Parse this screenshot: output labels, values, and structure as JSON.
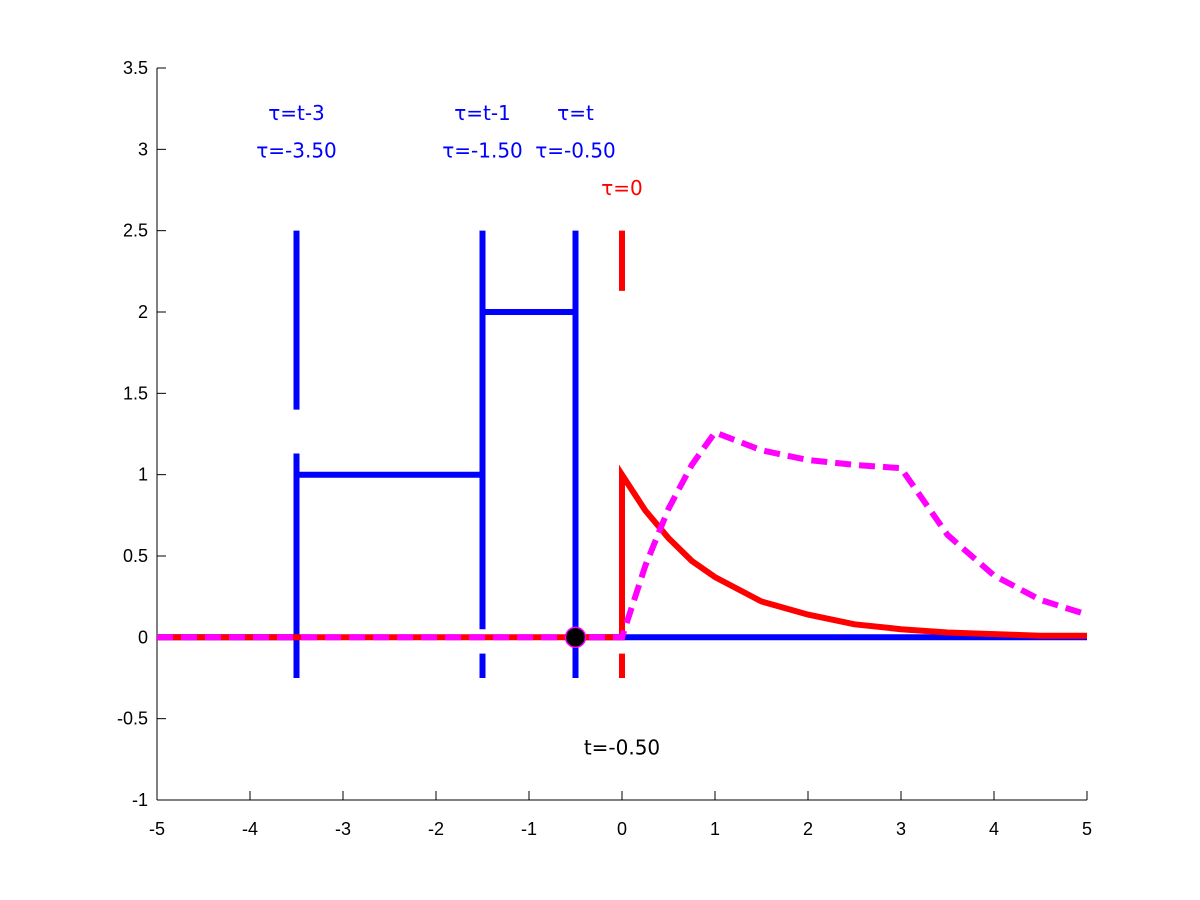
{
  "chart_data": {
    "type": "line",
    "xlim": [
      -5,
      5
    ],
    "ylim": [
      -1,
      3.5
    ],
    "x_ticks": [
      -5,
      -4,
      -3,
      -2,
      -1,
      0,
      1,
      2,
      3,
      4,
      5
    ],
    "x_tick_labels": [
      "-5",
      "-4",
      "-3",
      "-2",
      "-1",
      "0",
      "1",
      "2",
      "3",
      "4",
      "5"
    ],
    "y_ticks": [
      -1,
      -0.5,
      0,
      0.5,
      1,
      1.5,
      2,
      2.5,
      3,
      3.5
    ],
    "y_tick_labels": [
      "-1",
      "-0.5",
      "0",
      "0.5",
      "1",
      "1.5",
      "2",
      "2.5",
      "3",
      "3.5"
    ],
    "grid": false,
    "series": [
      {
        "id": "flipped-input",
        "color": "#0000ff",
        "style": "solid",
        "x": [
          -5,
          -3.5,
          -3.5,
          -1.5,
          -1.5,
          -0.5,
          -0.5,
          5
        ],
        "y": [
          0,
          0,
          1,
          1,
          2,
          2,
          0,
          0
        ]
      },
      {
        "id": "impulse-response",
        "color": "#ff0000",
        "style": "solid",
        "x": [
          -5,
          0,
          0,
          0.25,
          0.5,
          0.75,
          1,
          1.5,
          2,
          2.5,
          3,
          3.5,
          4,
          4.5,
          5
        ],
        "y": [
          0,
          0,
          1,
          0.78,
          0.61,
          0.47,
          0.37,
          0.22,
          0.14,
          0.08,
          0.05,
          0.03,
          0.02,
          0.01,
          0.01
        ]
      },
      {
        "id": "convolution-output",
        "color": "#ff00ff",
        "style": "dashed",
        "x": [
          -5,
          0,
          0.25,
          0.5,
          0.75,
          1,
          1.5,
          2,
          2.5,
          3,
          3.5,
          4,
          4.5,
          5
        ],
        "y": [
          0,
          0,
          0.44,
          0.79,
          1.06,
          1.26,
          1.15,
          1.09,
          1.06,
          1.04,
          0.63,
          0.38,
          0.23,
          0.14
        ]
      }
    ],
    "markers": [
      {
        "id": "current-t-marker",
        "x": -0.5,
        "y": 0,
        "color": "#000000",
        "edge_color": "#ff00ff"
      }
    ],
    "vertical_markers": [
      {
        "id": "tau-t-minus-3",
        "x": -3.5,
        "color": "#0000ff",
        "y_ranges": [
          [
            -0.25,
            0
          ],
          [
            0.05,
            1.13
          ],
          [
            1.4,
            2.5
          ]
        ]
      },
      {
        "id": "tau-t-minus-1",
        "x": -1.5,
        "color": "#0000ff",
        "y_ranges": [
          [
            -0.25,
            -0.1
          ],
          [
            0.05,
            2.5
          ]
        ]
      },
      {
        "id": "tau-t",
        "x": -0.5,
        "color": "#0000ff",
        "y_ranges": [
          [
            -0.25,
            0
          ],
          [
            0.05,
            2.5
          ]
        ]
      },
      {
        "id": "tau-zero",
        "x": 0,
        "color": "#ff0000",
        "y_ranges": [
          [
            -0.25,
            -0.1
          ],
          [
            0,
            1
          ],
          [
            2.13,
            2.5
          ]
        ]
      }
    ],
    "annotations": [
      {
        "id": "label-tau-t-minus-3",
        "text": "τ=t-3",
        "x": -3.5,
        "y": 3.18,
        "color": "#0000ff"
      },
      {
        "id": "label-tau-value-minus-3-50",
        "text": "τ=-3.50",
        "x": -3.5,
        "y": 2.95,
        "color": "#0000ff"
      },
      {
        "id": "label-tau-t-minus-1",
        "text": "τ=t-1",
        "x": -1.5,
        "y": 3.18,
        "color": "#0000ff"
      },
      {
        "id": "label-tau-value-minus-1-50",
        "text": "τ=-1.50",
        "x": -1.5,
        "y": 2.95,
        "color": "#0000ff"
      },
      {
        "id": "label-tau-t",
        "text": "τ=t",
        "x": -0.5,
        "y": 3.18,
        "color": "#0000ff"
      },
      {
        "id": "label-tau-value-minus-0-50",
        "text": "τ=-0.50",
        "x": -0.5,
        "y": 2.95,
        "color": "#0000ff"
      },
      {
        "id": "label-tau-zero",
        "text": "τ=0",
        "x": 0,
        "y": 2.72,
        "color": "#ff0000"
      },
      {
        "id": "label-current-t",
        "text": "t=-0.50",
        "x": 0,
        "y": -0.72,
        "color": "#000000"
      }
    ]
  }
}
